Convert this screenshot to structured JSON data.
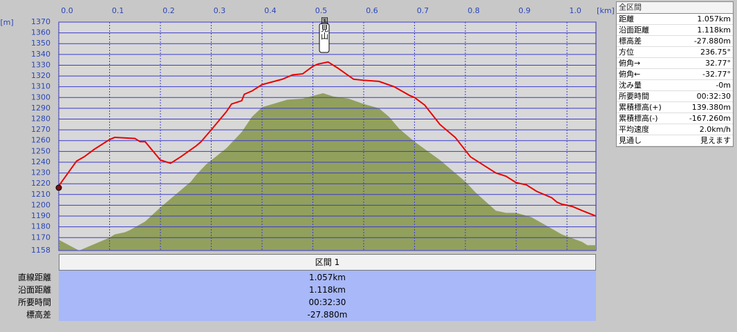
{
  "chart_data": {
    "type": "line",
    "x_unit": "[km]",
    "y_unit": "[m]",
    "annotation": "国見山",
    "xlim": [
      0,
      1.057
    ],
    "xticks": [
      {
        "value": 0,
        "label": "0.0"
      },
      0.1,
      0.2,
      0.3,
      0.4,
      0.5,
      0.6,
      0.7,
      0.8,
      0.9,
      {
        "value": 1,
        "label": "1.0"
      }
    ],
    "ylim": [
      1158,
      1370
    ],
    "yticks": [
      1158,
      1170,
      1180,
      1190,
      1200,
      1210,
      1220,
      1230,
      1240,
      1250,
      1260,
      1270,
      1280,
      1290,
      1300,
      1310,
      1320,
      1330,
      1340,
      1350,
      1360,
      1370
    ],
    "grid": true,
    "series": [
      {
        "color": "#e80000",
        "style": "line",
        "x": [
          0,
          0.035,
          0.05,
          0.07,
          0.1,
          0.11,
          0.15,
          0.16,
          0.17,
          0.2,
          0.22,
          0.24,
          0.27,
          0.28,
          0.3,
          0.33,
          0.34,
          0.36,
          0.365,
          0.38,
          0.4,
          0.44,
          0.46,
          0.48,
          0.5,
          0.51,
          0.53,
          0.55,
          0.58,
          0.6,
          0.63,
          0.66,
          0.69,
          0.7,
          0.72,
          0.75,
          0.78,
          0.81,
          0.83,
          0.86,
          0.88,
          0.9,
          0.92,
          0.94,
          0.97,
          0.98,
          0.99,
          1.01,
          1.03,
          1.057
        ],
        "values": [
          1218,
          1241,
          1245,
          1252,
          1261,
          1263,
          1262,
          1259,
          1259,
          1242,
          1239,
          1245,
          1255,
          1259,
          1270,
          1287,
          1294,
          1297,
          1303,
          1306,
          1312,
          1317,
          1321,
          1322,
          1329,
          1331,
          1333,
          1327,
          1317,
          1316,
          1315,
          1310,
          1302,
          1300,
          1293,
          1275,
          1263,
          1245,
          1239,
          1230,
          1227,
          1221,
          1219,
          1213,
          1207,
          1203,
          1201,
          1199,
          1195,
          1190
        ]
      },
      {
        "color": "#92a05e",
        "style": "area",
        "x": [
          0,
          0.04,
          0.06,
          0.1,
          0.11,
          0.13,
          0.14,
          0.17,
          0.2,
          0.23,
          0.26,
          0.27,
          0.29,
          0.33,
          0.36,
          0.38,
          0.4,
          0.45,
          0.48,
          0.52,
          0.54,
          0.57,
          0.6,
          0.63,
          0.65,
          0.67,
          0.7,
          0.75,
          0.8,
          0.82,
          0.86,
          0.88,
          0.9,
          0.93,
          0.96,
          0.99,
          1.03,
          1.04,
          1.057
        ],
        "values": [
          1168,
          1158,
          1162,
          1170,
          1173,
          1175,
          1177,
          1185,
          1198,
          1210,
          1222,
          1228,
          1238,
          1253,
          1268,
          1282,
          1291,
          1298,
          1299,
          1304,
          1301,
          1299,
          1294,
          1290,
          1282,
          1271,
          1259,
          1242,
          1222,
          1212,
          1195,
          1193,
          1193,
          1189,
          1181,
          1173,
          1166,
          1163,
          1163
        ]
      }
    ]
  },
  "side_panel": {
    "title": "全区間",
    "rows": [
      [
        "距離",
        "1.057km"
      ],
      [
        "沿面距離",
        "1.118km"
      ],
      [
        "標高差",
        "-27.880m"
      ],
      [
        "方位",
        "236.75°"
      ],
      [
        "俯角→",
        "32.77°"
      ],
      [
        "俯角←",
        "-32.77°"
      ],
      [
        "沈み量",
        "-0m"
      ],
      [
        "所要時間",
        "00:32:30"
      ],
      [
        "累積標高(+)",
        "139.380m"
      ],
      [
        "累積標高(-)",
        "-167.260m"
      ],
      [
        "平均速度",
        "2.0km/h"
      ],
      [
        "見通し",
        "見えます"
      ]
    ]
  },
  "section_table": {
    "header": "区間 1",
    "rows": [
      [
        "直線距離",
        "1.057km"
      ],
      [
        "沿面距離",
        "1.118km"
      ],
      [
        "所要時間",
        "00:32:30"
      ],
      [
        "標高差",
        "-27.880m"
      ]
    ]
  }
}
